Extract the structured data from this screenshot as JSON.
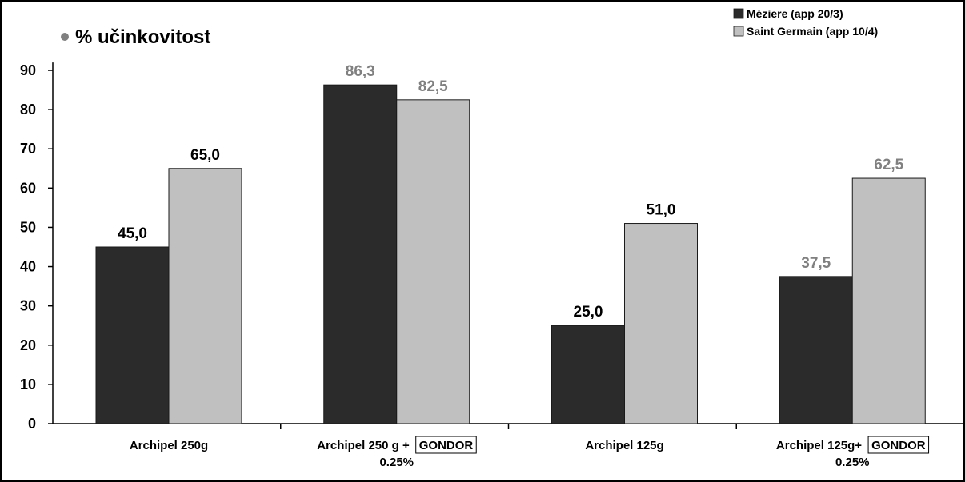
{
  "chart_data": {
    "type": "bar",
    "title": "% učinkovitost",
    "categories": [
      {
        "lines": [
          "Archipel 250g"
        ],
        "tag": ""
      },
      {
        "lines": [
          "Archipel 250 g +",
          "0.25%"
        ],
        "tag": "GONDOR"
      },
      {
        "lines": [
          "Archipel 125g"
        ],
        "tag": ""
      },
      {
        "lines": [
          "Archipel 125g+",
          "0.25%"
        ],
        "tag": "GONDOR"
      }
    ],
    "series": [
      {
        "name": "Méziere (app 20/3)",
        "color": "#2b2b2b",
        "values": [
          45.0,
          86.3,
          25.0,
          37.5
        ]
      },
      {
        "name": "Saint Germain (app 10/4)",
        "color": "#c0c0c0",
        "values": [
          65.0,
          82.5,
          51.0,
          62.5
        ]
      }
    ],
    "data_labels": [
      [
        "45,0",
        "86,3",
        "25,0",
        "37,5"
      ],
      [
        "65,0",
        "82,5",
        "51,0",
        "62,5"
      ]
    ],
    "label_colors": [
      [
        "#000000",
        "#808080",
        "#000000",
        "#808080"
      ],
      [
        "#000000",
        "#808080",
        "#000000",
        "#808080"
      ]
    ],
    "yticks": [
      0,
      10,
      20,
      30,
      40,
      50,
      60,
      70,
      80,
      90
    ],
    "ylim": [
      0,
      92
    ],
    "legend_position": "top-right",
    "grid": false
  }
}
